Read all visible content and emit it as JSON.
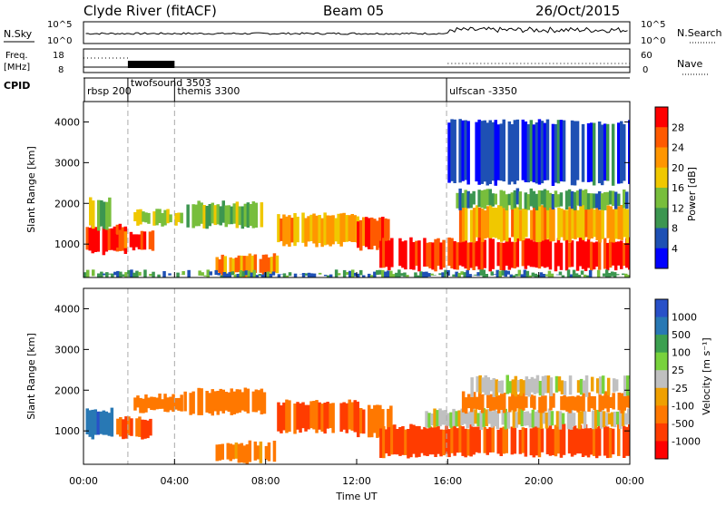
{
  "header": {
    "station": "Clyde River (fitACF)",
    "beam": "Beam 05",
    "date": "26/Oct/2015"
  },
  "noise_panel": {
    "left_label": "N.Sky",
    "right_label": "N.Search",
    "left_ticks": [
      "10^5",
      "10^0"
    ],
    "right_ticks": [
      "10^5",
      "10^0"
    ]
  },
  "freq_panel": {
    "left_label_line1": "Freq.",
    "left_label_line2": "[MHz]",
    "right_label": "Nave",
    "left_ticks": [
      "18",
      "8"
    ],
    "right_ticks": [
      "60",
      "0"
    ]
  },
  "cpid_panel": {
    "label": "CPID",
    "modes": [
      {
        "name": "rbsp 200",
        "start_hour": 0.0
      },
      {
        "name": "twofsound 3503",
        "start_hour": 1.95
      },
      {
        "name": "themis 3300",
        "start_hour": 4.0
      },
      {
        "name": "ulfscan -3350",
        "start_hour": 15.95
      }
    ]
  },
  "power_panel": {
    "ylabel": "Slant Range [km]",
    "yticks": [
      "4000",
      "3000",
      "2000",
      "1000"
    ],
    "colorbar_label": "Power [dB]",
    "colorbar_ticks": [
      "28",
      "24",
      "20",
      "16",
      "12",
      "8",
      "4"
    ],
    "colors": [
      "#ff0000",
      "#ff5a00",
      "#ff9600",
      "#f0c800",
      "#78be3c",
      "#3c9650",
      "#1e50b4",
      "#0000ff"
    ]
  },
  "velocity_panel": {
    "ylabel": "Slant Range [km]",
    "yticks": [
      "4000",
      "3000",
      "2000",
      "1000"
    ],
    "colorbar_label": "Velocity [m s⁻¹]",
    "colorbar_ticks": [
      "1000",
      "500",
      "100",
      "25",
      "-25",
      "-100",
      "-500",
      "-1000"
    ],
    "colors": [
      "#2850c8",
      "#2878b4",
      "#3ca050",
      "#78d23c",
      "#c0c0c0",
      "#f0a000",
      "#ff7800",
      "#ff3c00",
      "#ff0000"
    ]
  },
  "xaxis": {
    "label": "Time UT",
    "ticks": [
      "00:00",
      "04:00",
      "08:00",
      "12:00",
      "16:00",
      "20:00",
      "00:00"
    ]
  },
  "chart_data": {
    "type": "heatmap",
    "title": "Clyde River (fitACF)",
    "subtitle": "Beam 05",
    "date": "26/Oct/2015",
    "xlabel": "Time UT",
    "x_range_hours": [
      0,
      24
    ],
    "x_ticks": [
      "00:00",
      "04:00",
      "08:00",
      "12:00",
      "16:00",
      "20:00",
      "00:00"
    ],
    "ylabel": "Slant Range [km]",
    "y_range_km": [
      180,
      4500
    ],
    "y_ticks": [
      1000,
      2000,
      3000,
      4000
    ],
    "panels": [
      {
        "name": "Power [dB]",
        "colorbar_ticks": [
          4,
          8,
          12,
          16,
          20,
          24,
          28
        ],
        "regions": [
          {
            "t_start": 0.1,
            "t_end": 1.9,
            "r_low": 800,
            "r_high": 1450,
            "value": 28
          },
          {
            "t_start": 1.3,
            "t_end": 3.0,
            "r_low": 850,
            "r_high": 1300,
            "value": 26
          },
          {
            "t_start": 0.0,
            "t_end": 1.2,
            "r_low": 1400,
            "r_high": 2100,
            "value": 14
          },
          {
            "t_start": 2.2,
            "t_end": 4.3,
            "r_low": 1500,
            "r_high": 1800,
            "value": 16
          },
          {
            "t_start": 4.4,
            "t_end": 8.0,
            "r_low": 1450,
            "r_high": 2000,
            "value": 14
          },
          {
            "t_start": 5.8,
            "t_end": 8.5,
            "r_low": 250,
            "r_high": 700,
            "value": 22
          },
          {
            "t_start": 8.5,
            "t_end": 12.0,
            "r_low": 1000,
            "r_high": 1700,
            "value": 20
          },
          {
            "t_start": 12.0,
            "t_end": 13.5,
            "r_low": 900,
            "r_high": 1600,
            "value": 26
          },
          {
            "t_start": 13.0,
            "t_end": 24.0,
            "r_low": 400,
            "r_high": 1100,
            "value": 28
          },
          {
            "t_start": 16.5,
            "t_end": 24.0,
            "r_low": 1100,
            "r_high": 1900,
            "value": 20
          },
          {
            "t_start": 16.0,
            "t_end": 24.0,
            "r_low": 1900,
            "r_high": 2300,
            "value": 12
          },
          {
            "t_start": 16.0,
            "t_end": 24.0,
            "r_low": 2500,
            "r_high": 4000,
            "value": 6
          },
          {
            "t_start": 0.0,
            "t_end": 24.0,
            "r_low": 180,
            "r_high": 300,
            "value": 10
          }
        ]
      },
      {
        "name": "Velocity [m s-1]",
        "colorbar_ticks": [
          1000,
          500,
          100,
          25,
          -25,
          -100,
          -500,
          -1000
        ],
        "regions": [
          {
            "t_start": 0.1,
            "t_end": 1.2,
            "r_low": 850,
            "r_high": 1500,
            "value": 600
          },
          {
            "t_start": 1.2,
            "t_end": 3.0,
            "r_low": 850,
            "r_high": 1300,
            "value": -300
          },
          {
            "t_start": 2.2,
            "t_end": 4.3,
            "r_low": 1500,
            "r_high": 1850,
            "value": -200
          },
          {
            "t_start": 4.4,
            "t_end": 8.0,
            "r_low": 1450,
            "r_high": 2000,
            "value": -150
          },
          {
            "t_start": 5.8,
            "t_end": 8.5,
            "r_low": 250,
            "r_high": 700,
            "value": -100
          },
          {
            "t_start": 8.5,
            "t_end": 12.0,
            "r_low": 1000,
            "r_high": 1700,
            "value": -300
          },
          {
            "t_start": 12.0,
            "t_end": 13.5,
            "r_low": 900,
            "r_high": 1600,
            "value": -300
          },
          {
            "t_start": 13.0,
            "t_end": 24.0,
            "r_low": 400,
            "r_high": 1100,
            "value": -400
          },
          {
            "t_start": 15.0,
            "t_end": 24.0,
            "r_low": 1100,
            "r_high": 1500,
            "value": 0
          },
          {
            "t_start": 16.5,
            "t_end": 24.0,
            "r_low": 1500,
            "r_high": 1900,
            "value": -200
          },
          {
            "t_start": 17.0,
            "t_end": 24.0,
            "r_low": 1900,
            "r_high": 2300,
            "value": 0
          }
        ]
      }
    ],
    "cpid_modes": [
      {
        "name": "rbsp 200",
        "start_hour": 0.0
      },
      {
        "name": "twofsound 3503",
        "start_hour": 1.95
      },
      {
        "name": "themis 3300",
        "start_hour": 4.0
      },
      {
        "name": "ulfscan -3350",
        "start_hour": 15.95
      }
    ]
  }
}
